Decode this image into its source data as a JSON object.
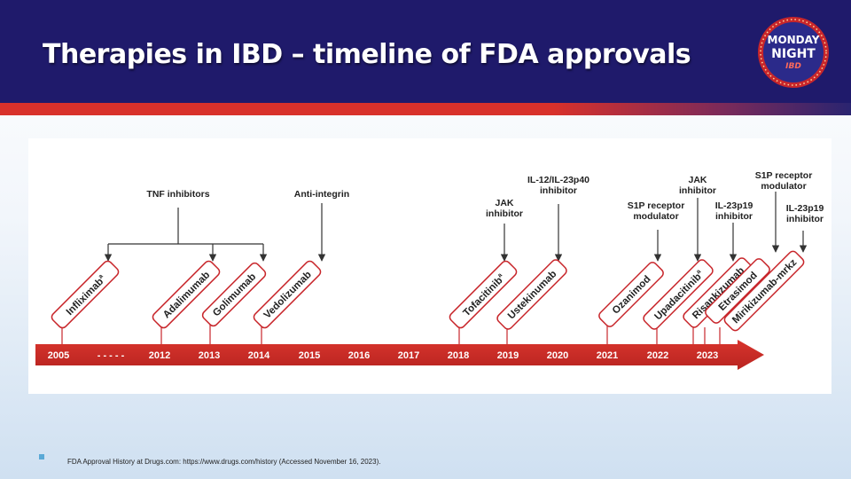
{
  "slide": {
    "title": "Therapies in IBD – timeline of FDA approvals",
    "footnote": "FDA Approval History at Drugs.com: https://www.drugs.com/history (Accessed November 16, 2023)."
  },
  "logo": {
    "line1": "MONDAY",
    "line2": "NIGHT",
    "line3": "IBD"
  },
  "colors": {
    "header_bg": "#1f1a6b",
    "accent_red": "#d8312b",
    "drug_border": "#c8262b"
  },
  "timeline": {
    "years": [
      "2005",
      "- - - - -",
      "2012",
      "2013",
      "2014",
      "2015",
      "2016",
      "2017",
      "2018",
      "2019",
      "2020",
      "2021",
      "2022",
      "2023"
    ],
    "drugs": [
      {
        "name": "Infliximab",
        "sup": "a",
        "year": "2005"
      },
      {
        "name": "Adalimumab",
        "sup": "",
        "year": "2012"
      },
      {
        "name": "Golimumab",
        "sup": "",
        "year": "2013"
      },
      {
        "name": "Vedolizumab",
        "sup": "",
        "year": "2014"
      },
      {
        "name": "Tofacitinib",
        "sup": "a",
        "year": "2018"
      },
      {
        "name": "Ustekinumab",
        "sup": "",
        "year": "2019"
      },
      {
        "name": "Ozanimod",
        "sup": "",
        "year": "2021"
      },
      {
        "name": "Upadacitinib",
        "sup": "a",
        "year": "2022"
      },
      {
        "name": "Risankizumab",
        "sup": "",
        "year": "2022"
      },
      {
        "name": "Etrasimod",
        "sup": "",
        "year": "2023"
      },
      {
        "name": "Mirikizumab-mrkz",
        "sup": "",
        "year": "2023"
      }
    ],
    "classes": [
      {
        "lines": [
          "TNF inhibitors"
        ]
      },
      {
        "lines": [
          "Anti-integrin"
        ]
      },
      {
        "lines": [
          "JAK",
          "inhibitor"
        ]
      },
      {
        "lines": [
          "IL-12/IL-23p40",
          "inhibitor"
        ]
      },
      {
        "lines": [
          "S1P receptor",
          "modulator"
        ]
      },
      {
        "lines": [
          "JAK",
          "inhibitor"
        ]
      },
      {
        "lines": [
          "IL-23p19",
          "inhibitor"
        ]
      },
      {
        "lines": [
          "S1P receptor",
          "modulator"
        ]
      },
      {
        "lines": [
          "IL-23p19",
          "inhibitor"
        ]
      }
    ]
  }
}
